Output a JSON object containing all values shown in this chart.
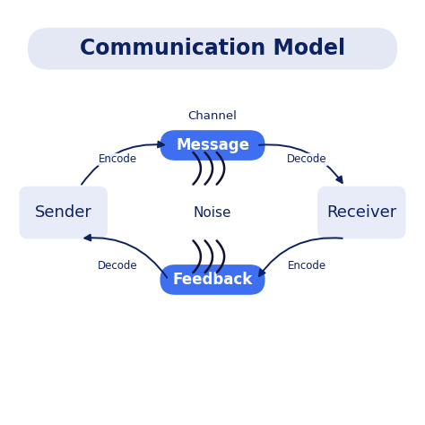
{
  "title": "Communication Model",
  "title_color": "#0d2260",
  "title_bg": "#e4e8f5",
  "bg_color": "#ffffff",
  "message_label": "Message",
  "feedback_label": "Feedback",
  "sender_label": "Sender",
  "receiver_label": "Receiver",
  "channel_label": "Channel",
  "noise_label": "Noise",
  "encode_top": "Encode",
  "decode_top": "Decode",
  "decode_bottom": "Decode",
  "encode_bottom": "Encode",
  "blue_box_color": "#3d6ff0",
  "blue_box_text_color": "#ffffff",
  "light_box_color": "#e8ecf8",
  "light_box_text_color": "#0d2260",
  "arrow_color": "#0d2260",
  "label_color": "#0d2260",
  "noise_chevron_color": "#111133"
}
